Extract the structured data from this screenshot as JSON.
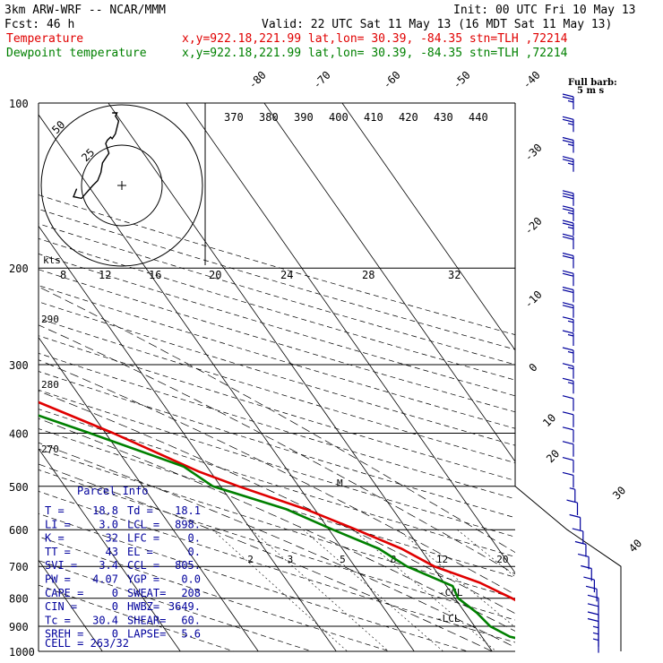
{
  "header": {
    "model": "3km ARW-WRF -- NCAR/MMM",
    "init": "Init: 00 UTC Fri 10 May 13",
    "fcst": "Fcst:   46 h",
    "valid": "Valid: 22 UTC Sat 11 May 13 (16 MDT Sat 11 May 13)",
    "temp_label": "Temperature",
    "dew_label": "Dewpoint temperature",
    "loc_temp": "x,y=922.18,221.99   lat,lon= 30.39, -84.35  stn=TLH ,72214",
    "loc_dew": "x,y=922.18,221.99   lat,lon= 30.39, -84.35  stn=TLH ,72214"
  },
  "colors": {
    "temperature": "#e00000",
    "dewpoint": "#008000",
    "parcel": "#00009c",
    "barbs": "#00009c"
  },
  "chart_data": {
    "type": "line",
    "pressure_levels": [
      "100",
      "200",
      "300",
      "400",
      "500",
      "600",
      "700",
      "800",
      "900",
      "1000"
    ],
    "isotherm_labels": [
      "-80",
      "-70",
      "-60",
      "-50",
      "-40",
      "-30",
      "-20",
      "-10",
      "0",
      "10",
      "20",
      "30",
      "40"
    ],
    "theta_labels": [
      "370",
      "380",
      "390",
      "400",
      "410",
      "420",
      "430",
      "440"
    ],
    "theta_side_labels": [
      "290",
      "280",
      "270"
    ],
    "mixing_ratio_labels": [
      "2",
      "3",
      "5",
      "8",
      "12",
      "20"
    ],
    "hodograph_speed_labels": [
      "8",
      "12",
      "16",
      "20",
      "24",
      "28",
      "32"
    ],
    "hodograph_ring_labels": [
      "50",
      "25"
    ],
    "hodograph_units": "kts",
    "wind_legend": [
      "Full barb:",
      "5 m s"
    ],
    "lcl_marker": "LCL",
    "ccl_marker": "CCL",
    "mark_m": "M",
    "series": [
      {
        "name": "Temperature",
        "color": "#e00000",
        "points": [
          [
            1000,
            24.2
          ],
          [
            980,
            26.6
          ],
          [
            960,
            26.4
          ],
          [
            940,
            25.8
          ],
          [
            920,
            24.0
          ],
          [
            900,
            22.4
          ],
          [
            880,
            21.3
          ],
          [
            850,
            19.5
          ],
          [
            800,
            17.3
          ],
          [
            750,
            14.6
          ],
          [
            700,
            10.2
          ],
          [
            650,
            7.6
          ],
          [
            600,
            3.5
          ],
          [
            550,
            -1.2
          ],
          [
            500,
            -7.7
          ],
          [
            470,
            -11.5
          ],
          [
            400,
            -19
          ],
          [
            350,
            -26
          ],
          [
            300,
            -34
          ],
          [
            250,
            -43
          ],
          [
            220,
            -50
          ],
          [
            200,
            -55
          ],
          [
            180,
            -56
          ],
          [
            150,
            -58
          ],
          [
            130,
            -57
          ],
          [
            120,
            -55
          ],
          [
            110,
            -55
          ],
          [
            100,
            -55
          ]
        ]
      },
      {
        "name": "Dewpoint temperature",
        "color": "#008000",
        "points": [
          [
            1000,
            20.6
          ],
          [
            980,
            18.5
          ],
          [
            960,
            15.8
          ],
          [
            940,
            13.6
          ],
          [
            900,
            12.0
          ],
          [
            850,
            11.5
          ],
          [
            800,
            10.4
          ],
          [
            760,
            10.8
          ],
          [
            700,
            6.7
          ],
          [
            650,
            4.7
          ],
          [
            600,
            0.5
          ],
          [
            550,
            -3.7
          ],
          [
            500,
            -11.0
          ],
          [
            460,
            -13.0
          ],
          [
            400,
            -22
          ],
          [
            350,
            -31
          ],
          [
            300,
            -41
          ],
          [
            250,
            -54
          ],
          [
            220,
            -60
          ],
          [
            200,
            -64
          ],
          [
            180,
            -67
          ],
          [
            150,
            -71
          ],
          [
            130,
            -70
          ],
          [
            110,
            -76
          ],
          [
            100,
            -79
          ]
        ]
      }
    ],
    "hodograph": [
      [
        -28,
        2
      ],
      [
        -30,
        7
      ],
      [
        -25,
        8
      ],
      [
        -18,
        0
      ],
      [
        -15,
        -3
      ],
      [
        -13,
        -8
      ],
      [
        -12,
        -14
      ],
      [
        -8,
        -20
      ],
      [
        -10,
        -26
      ],
      [
        -9,
        -28
      ],
      [
        -7,
        -30
      ],
      [
        -6,
        -29
      ],
      [
        -4,
        -32
      ],
      [
        -3,
        -36
      ],
      [
        -2,
        -40
      ],
      [
        -4,
        -43
      ],
      [
        -3,
        -45
      ],
      [
        -6,
        -45
      ]
    ],
    "wind_barbs": [
      {
        "p": 100,
        "spd": 25
      },
      {
        "p": 110,
        "spd": 25
      },
      {
        "p": 120,
        "spd": 25
      },
      {
        "p": 130,
        "spd": 25
      },
      {
        "p": 150,
        "spd": 30
      },
      {
        "p": 160,
        "spd": 25
      },
      {
        "p": 170,
        "spd": 25
      },
      {
        "p": 180,
        "spd": 20
      },
      {
        "p": 195,
        "spd": 20
      },
      {
        "p": 210,
        "spd": 20
      },
      {
        "p": 225,
        "spd": 20
      },
      {
        "p": 240,
        "spd": 20
      },
      {
        "p": 255,
        "spd": 15
      },
      {
        "p": 270,
        "spd": 15
      },
      {
        "p": 290,
        "spd": 15
      },
      {
        "p": 310,
        "spd": 15
      },
      {
        "p": 330,
        "spd": 15
      },
      {
        "p": 355,
        "spd": 10
      },
      {
        "p": 380,
        "spd": 10
      },
      {
        "p": 405,
        "spd": 10
      },
      {
        "p": 430,
        "spd": 10
      },
      {
        "p": 460,
        "spd": 10
      },
      {
        "p": 490,
        "spd": 10
      },
      {
        "p": 520,
        "spd": 5
      },
      {
        "p": 550,
        "spd": 10
      },
      {
        "p": 585,
        "spd": 10
      },
      {
        "p": 620,
        "spd": 10
      },
      {
        "p": 655,
        "spd": 10
      },
      {
        "p": 690,
        "spd": 10
      },
      {
        "p": 725,
        "spd": 10
      },
      {
        "p": 760,
        "spd": 10
      },
      {
        "p": 790,
        "spd": 10
      },
      {
        "p": 820,
        "spd": 10
      },
      {
        "p": 850,
        "spd": 10
      },
      {
        "p": 880,
        "spd": 10
      },
      {
        "p": 905,
        "spd": 10
      },
      {
        "p": 930,
        "spd": 5
      },
      {
        "p": 955,
        "spd": 5
      },
      {
        "p": 980,
        "spd": 5
      }
    ]
  },
  "parcel": {
    "title": "Parcel Info",
    "rows": [
      [
        "T  =",
        "18.8",
        "Td =",
        "18.1"
      ],
      [
        "LI =",
        "3.0",
        "LCL =",
        "898."
      ],
      [
        "K  =",
        "32",
        "LFC =",
        "0."
      ],
      [
        "TT =",
        "43",
        "EL =",
        "0."
      ],
      [
        "SVI =",
        "3.4",
        "CCL =",
        "805."
      ],
      [
        "PW =",
        "4.07",
        "YGP =",
        "0.0"
      ],
      [
        "CAPE =",
        "0",
        "SWEAT=",
        "208"
      ],
      [
        "CIN =",
        "0",
        "HWBZ=",
        "3649."
      ],
      [
        "Tc =",
        "30.4",
        "SHEAR=",
        "60."
      ],
      [
        "SREH =",
        "0",
        "LAPSE=",
        "5.6"
      ]
    ],
    "cell": "CELL = 263/32"
  }
}
